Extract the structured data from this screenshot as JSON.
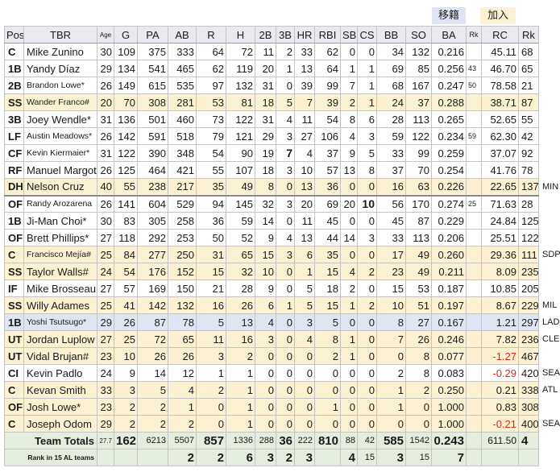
{
  "legend": {
    "transferred": "移籍",
    "joined": "加入"
  },
  "colors": {
    "transferred": "#dfe5f4",
    "joined": "#fcf2d2",
    "header": "#e8eaf0",
    "totals": "#e5eddf",
    "negative": "#e3241c"
  },
  "table": {
    "headers": [
      "Pos",
      "TBR",
      "Age",
      "G",
      "PA",
      "AB",
      "R",
      "H",
      "2B",
      "3B",
      "HR",
      "RBI",
      "SB",
      "CS",
      "BB",
      "SO",
      "BA",
      "Rk",
      "RC",
      "Rk"
    ],
    "players": [
      {
        "status": "",
        "note": "",
        "cells": [
          "C",
          "Mike Zunino",
          "30",
          "109",
          "375",
          "333",
          "64",
          "72",
          "11",
          "2",
          "33",
          "62",
          "0",
          "0",
          "34",
          "132",
          "0.216",
          "",
          "45.11",
          "68"
        ]
      },
      {
        "status": "",
        "note": "",
        "cells": [
          "1B",
          "Yandy Díaz",
          "29",
          "134",
          "541",
          "465",
          "62",
          "119",
          "20",
          "1",
          "13",
          "64",
          "1",
          "1",
          "69",
          "85",
          "0.256",
          "43",
          "46.70",
          "65"
        ]
      },
      {
        "status": "",
        "note": "",
        "cells": [
          "2B",
          "Brandon Lowe*",
          "26",
          "149",
          "615",
          "535",
          "97",
          "132",
          "31",
          "0",
          "39",
          "99",
          "7",
          "1",
          "68",
          "167",
          "0.247",
          "50",
          "78.58",
          "21"
        ]
      },
      {
        "status": "joined",
        "note": "",
        "cells": [
          "SS",
          "Wander Franco#",
          "20",
          "70",
          "308",
          "281",
          "53",
          "81",
          "18",
          "5",
          "7",
          "39",
          "2",
          "1",
          "24",
          "37",
          "0.288",
          "",
          "38.71",
          "87"
        ]
      },
      {
        "status": "",
        "note": "",
        "cells": [
          "3B",
          "Joey Wendle*",
          "31",
          "136",
          "501",
          "460",
          "73",
          "122",
          "31",
          "4",
          "11",
          "54",
          "8",
          "6",
          "28",
          "113",
          "0.265",
          "",
          "52.65",
          "55"
        ]
      },
      {
        "status": "",
        "note": "",
        "cells": [
          "LF",
          "Austin Meadows*",
          "26",
          "142",
          "591",
          "518",
          "79",
          "121",
          "29",
          "3",
          "27",
          "106",
          "4",
          "3",
          "59",
          "122",
          "0.234",
          "59",
          "62.30",
          "42"
        ]
      },
      {
        "status": "",
        "note": "",
        "cells": [
          "CF",
          "Kevin Kiermaier*",
          "31",
          "122",
          "390",
          "348",
          "54",
          "90",
          "19",
          "7",
          "4",
          "37",
          "9",
          "5",
          "33",
          "99",
          "0.259",
          "",
          "37.07",
          "92"
        ]
      },
      {
        "status": "",
        "note": "",
        "cells": [
          "RF",
          "Manuel Margot",
          "26",
          "125",
          "464",
          "421",
          "55",
          "107",
          "18",
          "3",
          "10",
          "57",
          "13",
          "8",
          "37",
          "70",
          "0.254",
          "",
          "41.76",
          "78"
        ]
      },
      {
        "status": "joined",
        "note": "MIN",
        "cells": [
          "DH",
          "Nelson Cruz",
          "40",
          "55",
          "238",
          "217",
          "35",
          "49",
          "8",
          "0",
          "13",
          "36",
          "0",
          "0",
          "16",
          "63",
          "0.226",
          "",
          "22.65",
          "137"
        ]
      },
      {
        "status": "",
        "note": "",
        "cells": [
          "OF",
          "Randy Arozarena",
          "26",
          "141",
          "604",
          "529",
          "94",
          "145",
          "32",
          "3",
          "20",
          "69",
          "20",
          "10",
          "56",
          "170",
          "0.274",
          "25",
          "71.63",
          "28"
        ]
      },
      {
        "status": "",
        "note": "",
        "cells": [
          "1B",
          "Ji-Man Choi*",
          "30",
          "83",
          "305",
          "258",
          "36",
          "59",
          "14",
          "0",
          "11",
          "45",
          "0",
          "0",
          "45",
          "87",
          "0.229",
          "",
          "24.84",
          "125"
        ]
      },
      {
        "status": "",
        "note": "",
        "cells": [
          "OF",
          "Brett Phillips*",
          "27",
          "118",
          "292",
          "253",
          "50",
          "52",
          "9",
          "4",
          "13",
          "44",
          "14",
          "3",
          "33",
          "113",
          "0.206",
          "",
          "25.51",
          "122"
        ]
      },
      {
        "status": "joined",
        "note": "SDP",
        "cells": [
          "C",
          "Francisco Mejía#",
          "25",
          "84",
          "277",
          "250",
          "31",
          "65",
          "15",
          "3",
          "6",
          "35",
          "0",
          "0",
          "17",
          "49",
          "0.260",
          "",
          "29.36",
          "111"
        ]
      },
      {
        "status": "joined",
        "note": "",
        "cells": [
          "SS",
          "Taylor Walls#",
          "24",
          "54",
          "176",
          "152",
          "15",
          "32",
          "10",
          "0",
          "1",
          "15",
          "4",
          "2",
          "23",
          "49",
          "0.211",
          "",
          "8.09",
          "235"
        ]
      },
      {
        "status": "",
        "note": "",
        "cells": [
          "IF",
          "Mike Brosseau",
          "27",
          "57",
          "169",
          "150",
          "21",
          "28",
          "9",
          "0",
          "5",
          "18",
          "2",
          "0",
          "15",
          "53",
          "0.187",
          "",
          "10.85",
          "205"
        ]
      },
      {
        "status": "joined",
        "note": "MIL",
        "cells": [
          "SS",
          "Willy Adames",
          "25",
          "41",
          "142",
          "132",
          "16",
          "26",
          "6",
          "1",
          "5",
          "15",
          "1",
          "2",
          "10",
          "51",
          "0.197",
          "",
          "8.67",
          "229"
        ]
      },
      {
        "status": "transferred",
        "note": "LAD",
        "cells": [
          "1B",
          "Yoshi Tsutsugo*",
          "29",
          "26",
          "87",
          "78",
          "5",
          "13",
          "4",
          "0",
          "3",
          "5",
          "0",
          "0",
          "8",
          "27",
          "0.167",
          "",
          "1.21",
          "297"
        ]
      },
      {
        "status": "joined",
        "note": "CLE",
        "cells": [
          "UT",
          "Jordan Luplow",
          "27",
          "25",
          "72",
          "65",
          "11",
          "16",
          "3",
          "0",
          "4",
          "8",
          "1",
          "0",
          "7",
          "26",
          "0.246",
          "",
          "7.82",
          "236"
        ]
      },
      {
        "status": "joined",
        "note": "",
        "cells": [
          "UT",
          "Vidal Brujan#",
          "23",
          "10",
          "26",
          "26",
          "3",
          "2",
          "0",
          "0",
          "0",
          "2",
          "1",
          "0",
          "0",
          "8",
          "0.077",
          "",
          "-1.27",
          "467"
        ]
      },
      {
        "status": "",
        "note": "SEA",
        "cells": [
          "CI",
          "Kevin Padlo",
          "24",
          "9",
          "14",
          "12",
          "1",
          "1",
          "0",
          "0",
          "0",
          "0",
          "0",
          "0",
          "2",
          "8",
          "0.083",
          "",
          "-0.29",
          "420"
        ]
      },
      {
        "status": "joined",
        "note": "ATL",
        "cells": [
          "C",
          "Kevan Smith",
          "33",
          "3",
          "5",
          "4",
          "2",
          "1",
          "0",
          "0",
          "0",
          "0",
          "0",
          "0",
          "1",
          "2",
          "0.250",
          "",
          "0.21",
          "338"
        ]
      },
      {
        "status": "joined",
        "note": "",
        "cells": [
          "OF",
          "Josh Lowe*",
          "23",
          "2",
          "2",
          "1",
          "0",
          "1",
          "0",
          "0",
          "0",
          "1",
          "0",
          "0",
          "1",
          "0",
          "1.000",
          "",
          "0.83",
          "308"
        ]
      },
      {
        "status": "joined",
        "note": "SEA",
        "cells": [
          "C",
          "Joseph Odom",
          "29",
          "2",
          "2",
          "2",
          "0",
          "1",
          "0",
          "0",
          "0",
          "0",
          "0",
          "0",
          "0",
          "0",
          "1.000",
          "",
          "-0.21",
          "400"
        ]
      }
    ],
    "totals": {
      "label": "Team Totals",
      "cells": [
        "27.7",
        "162",
        "6213",
        "5507",
        "857",
        "1336",
        "288",
        "36",
        "222",
        "810",
        "88",
        "42",
        "585",
        "1542",
        "0.243",
        "",
        "611.50",
        "4"
      ]
    },
    "rank": {
      "label": "Rank in 15 AL teams",
      "cells": [
        "",
        "",
        "",
        "2",
        "2",
        "6",
        "3",
        "2",
        "3",
        "",
        "4",
        "15",
        "3",
        "15",
        "7",
        "",
        "",
        ""
      ]
    }
  }
}
